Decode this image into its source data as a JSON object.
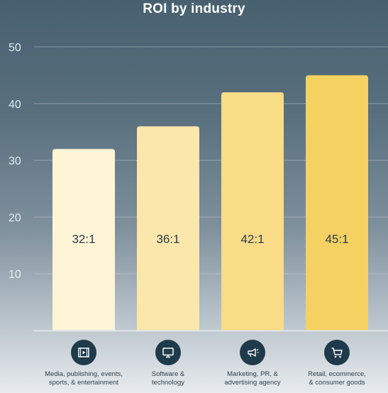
{
  "chart_data": {
    "type": "bar",
    "title": "ROI by industry",
    "categories": [
      "Media, publishing, events,\nsports, & entertainment",
      "Software &\ntechnology",
      "Marketing, PR, &\nadvertising agency",
      "Retail, ecommerce,\n& consumer goods"
    ],
    "values": [
      32,
      36,
      42,
      45
    ],
    "data_labels": [
      "32:1",
      "36:1",
      "42:1",
      "45:1"
    ],
    "yticks": [
      10,
      20,
      30,
      40,
      50
    ],
    "ylim": [
      0,
      50
    ],
    "grid": true,
    "bar_colors": [
      "#fdf4d6",
      "#fbe6ab",
      "#f8dc86",
      "#f4d160"
    ],
    "category_icons": [
      "video-icon",
      "monitor-icon",
      "megaphone-icon",
      "shopping-cart-icon"
    ]
  }
}
